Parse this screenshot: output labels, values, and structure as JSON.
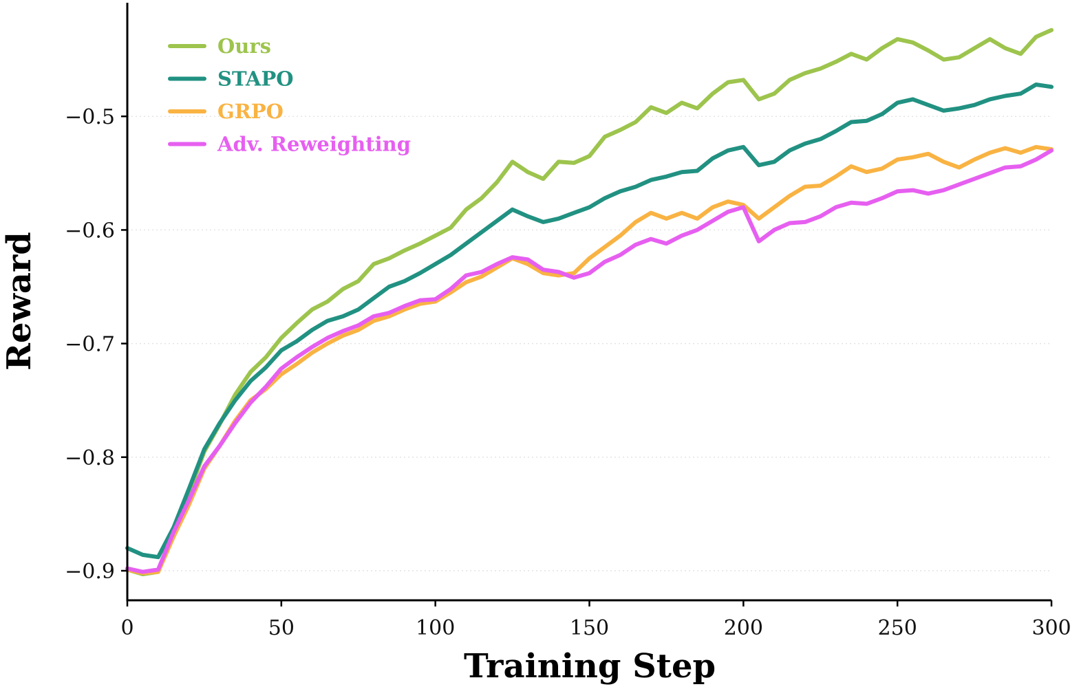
{
  "chart_data": {
    "type": "line",
    "title": "",
    "xlabel": "Training Step",
    "ylabel": "Reward",
    "xlim": [
      0,
      300
    ],
    "ylim": [
      -0.926,
      -0.4
    ],
    "xticks": [
      0,
      50,
      100,
      150,
      200,
      250,
      300
    ],
    "yticks": [
      -0.9,
      -0.8,
      -0.7,
      -0.6,
      -0.5
    ],
    "xtick_labels": [
      "0",
      "50",
      "100",
      "150",
      "200",
      "250",
      "300"
    ],
    "ytick_labels": [
      "−0.9",
      "−0.8",
      "−0.7",
      "−0.6",
      "−0.5"
    ],
    "grid": "horizontal dotted",
    "legend_position": "top-left",
    "series": [
      {
        "name": "Ours",
        "color": "#9dc44d",
        "points": [
          [
            0,
            -0.899
          ],
          [
            5,
            -0.903
          ],
          [
            10,
            -0.901
          ],
          [
            15,
            -0.868
          ],
          [
            20,
            -0.832
          ],
          [
            25,
            -0.795
          ],
          [
            30,
            -0.771
          ],
          [
            35,
            -0.745
          ],
          [
            40,
            -0.725
          ],
          [
            45,
            -0.712
          ],
          [
            50,
            -0.695
          ],
          [
            55,
            -0.682
          ],
          [
            60,
            -0.67
          ],
          [
            65,
            -0.663
          ],
          [
            70,
            -0.652
          ],
          [
            75,
            -0.645
          ],
          [
            80,
            -0.63
          ],
          [
            85,
            -0.625
          ],
          [
            90,
            -0.618
          ],
          [
            95,
            -0.612
          ],
          [
            100,
            -0.605
          ],
          [
            105,
            -0.598
          ],
          [
            110,
            -0.582
          ],
          [
            115,
            -0.572
          ],
          [
            120,
            -0.558
          ],
          [
            125,
            -0.54
          ],
          [
            130,
            -0.549
          ],
          [
            135,
            -0.555
          ],
          [
            140,
            -0.54
          ],
          [
            145,
            -0.541
          ],
          [
            150,
            -0.535
          ],
          [
            155,
            -0.518
          ],
          [
            160,
            -0.512
          ],
          [
            165,
            -0.505
          ],
          [
            170,
            -0.492
          ],
          [
            175,
            -0.497
          ],
          [
            180,
            -0.488
          ],
          [
            185,
            -0.493
          ],
          [
            190,
            -0.48
          ],
          [
            195,
            -0.47
          ],
          [
            200,
            -0.468
          ],
          [
            205,
            -0.485
          ],
          [
            210,
            -0.48
          ],
          [
            215,
            -0.468
          ],
          [
            220,
            -0.462
          ],
          [
            225,
            -0.458
          ],
          [
            230,
            -0.452
          ],
          [
            235,
            -0.445
          ],
          [
            240,
            -0.45
          ],
          [
            245,
            -0.44
          ],
          [
            250,
            -0.432
          ],
          [
            255,
            -0.435
          ],
          [
            260,
            -0.442
          ],
          [
            265,
            -0.45
          ],
          [
            270,
            -0.448
          ],
          [
            275,
            -0.44
          ],
          [
            280,
            -0.432
          ],
          [
            285,
            -0.44
          ],
          [
            290,
            -0.445
          ],
          [
            295,
            -0.43
          ],
          [
            300,
            -0.424
          ]
        ]
      },
      {
        "name": "STAPO",
        "color": "#219182",
        "points": [
          [
            0,
            -0.88
          ],
          [
            5,
            -0.886
          ],
          [
            10,
            -0.888
          ],
          [
            15,
            -0.862
          ],
          [
            20,
            -0.828
          ],
          [
            25,
            -0.793
          ],
          [
            30,
            -0.77
          ],
          [
            35,
            -0.75
          ],
          [
            40,
            -0.733
          ],
          [
            45,
            -0.721
          ],
          [
            50,
            -0.706
          ],
          [
            55,
            -0.698
          ],
          [
            60,
            -0.688
          ],
          [
            65,
            -0.68
          ],
          [
            70,
            -0.676
          ],
          [
            75,
            -0.67
          ],
          [
            80,
            -0.66
          ],
          [
            85,
            -0.65
          ],
          [
            90,
            -0.645
          ],
          [
            95,
            -0.638
          ],
          [
            100,
            -0.63
          ],
          [
            105,
            -0.622
          ],
          [
            110,
            -0.612
          ],
          [
            115,
            -0.602
          ],
          [
            120,
            -0.592
          ],
          [
            125,
            -0.582
          ],
          [
            130,
            -0.588
          ],
          [
            135,
            -0.593
          ],
          [
            140,
            -0.59
          ],
          [
            145,
            -0.585
          ],
          [
            150,
            -0.58
          ],
          [
            155,
            -0.572
          ],
          [
            160,
            -0.566
          ],
          [
            165,
            -0.562
          ],
          [
            170,
            -0.556
          ],
          [
            175,
            -0.553
          ],
          [
            180,
            -0.549
          ],
          [
            185,
            -0.548
          ],
          [
            190,
            -0.537
          ],
          [
            195,
            -0.53
          ],
          [
            200,
            -0.527
          ],
          [
            205,
            -0.543
          ],
          [
            210,
            -0.54
          ],
          [
            215,
            -0.53
          ],
          [
            220,
            -0.524
          ],
          [
            225,
            -0.52
          ],
          [
            230,
            -0.513
          ],
          [
            235,
            -0.505
          ],
          [
            240,
            -0.504
          ],
          [
            245,
            -0.498
          ],
          [
            250,
            -0.488
          ],
          [
            255,
            -0.485
          ],
          [
            260,
            -0.49
          ],
          [
            265,
            -0.495
          ],
          [
            270,
            -0.493
          ],
          [
            275,
            -0.49
          ],
          [
            280,
            -0.485
          ],
          [
            285,
            -0.482
          ],
          [
            290,
            -0.48
          ],
          [
            295,
            -0.472
          ],
          [
            300,
            -0.474
          ]
        ]
      },
      {
        "name": "GRPO",
        "color": "#f9b343",
        "points": [
          [
            0,
            -0.899
          ],
          [
            5,
            -0.902
          ],
          [
            10,
            -0.901
          ],
          [
            15,
            -0.87
          ],
          [
            20,
            -0.842
          ],
          [
            25,
            -0.81
          ],
          [
            30,
            -0.79
          ],
          [
            35,
            -0.768
          ],
          [
            40,
            -0.75
          ],
          [
            45,
            -0.74
          ],
          [
            50,
            -0.727
          ],
          [
            55,
            -0.718
          ],
          [
            60,
            -0.708
          ],
          [
            65,
            -0.7
          ],
          [
            70,
            -0.693
          ],
          [
            75,
            -0.688
          ],
          [
            80,
            -0.68
          ],
          [
            85,
            -0.676
          ],
          [
            90,
            -0.67
          ],
          [
            95,
            -0.665
          ],
          [
            100,
            -0.663
          ],
          [
            105,
            -0.655
          ],
          [
            110,
            -0.646
          ],
          [
            115,
            -0.641
          ],
          [
            120,
            -0.633
          ],
          [
            125,
            -0.625
          ],
          [
            130,
            -0.63
          ],
          [
            135,
            -0.638
          ],
          [
            140,
            -0.64
          ],
          [
            145,
            -0.638
          ],
          [
            150,
            -0.625
          ],
          [
            155,
            -0.615
          ],
          [
            160,
            -0.605
          ],
          [
            165,
            -0.593
          ],
          [
            170,
            -0.585
          ],
          [
            175,
            -0.59
          ],
          [
            180,
            -0.585
          ],
          [
            185,
            -0.59
          ],
          [
            190,
            -0.58
          ],
          [
            195,
            -0.575
          ],
          [
            200,
            -0.578
          ],
          [
            205,
            -0.59
          ],
          [
            210,
            -0.58
          ],
          [
            215,
            -0.57
          ],
          [
            220,
            -0.562
          ],
          [
            225,
            -0.561
          ],
          [
            230,
            -0.553
          ],
          [
            235,
            -0.544
          ],
          [
            240,
            -0.549
          ],
          [
            245,
            -0.546
          ],
          [
            250,
            -0.538
          ],
          [
            255,
            -0.536
          ],
          [
            260,
            -0.533
          ],
          [
            265,
            -0.54
          ],
          [
            270,
            -0.545
          ],
          [
            275,
            -0.538
          ],
          [
            280,
            -0.532
          ],
          [
            285,
            -0.528
          ],
          [
            290,
            -0.532
          ],
          [
            295,
            -0.527
          ],
          [
            300,
            -0.529
          ]
        ]
      },
      {
        "name": "Adv. Reweighting",
        "color": "#e65ff0",
        "points": [
          [
            0,
            -0.898
          ],
          [
            5,
            -0.901
          ],
          [
            10,
            -0.899
          ],
          [
            15,
            -0.866
          ],
          [
            20,
            -0.838
          ],
          [
            25,
            -0.808
          ],
          [
            30,
            -0.79
          ],
          [
            35,
            -0.77
          ],
          [
            40,
            -0.752
          ],
          [
            45,
            -0.738
          ],
          [
            50,
            -0.722
          ],
          [
            55,
            -0.712
          ],
          [
            60,
            -0.703
          ],
          [
            65,
            -0.695
          ],
          [
            70,
            -0.689
          ],
          [
            75,
            -0.684
          ],
          [
            80,
            -0.676
          ],
          [
            85,
            -0.673
          ],
          [
            90,
            -0.667
          ],
          [
            95,
            -0.662
          ],
          [
            100,
            -0.661
          ],
          [
            105,
            -0.652
          ],
          [
            110,
            -0.64
          ],
          [
            115,
            -0.637
          ],
          [
            120,
            -0.63
          ],
          [
            125,
            -0.624
          ],
          [
            130,
            -0.626
          ],
          [
            135,
            -0.635
          ],
          [
            140,
            -0.637
          ],
          [
            145,
            -0.642
          ],
          [
            150,
            -0.638
          ],
          [
            155,
            -0.628
          ],
          [
            160,
            -0.622
          ],
          [
            165,
            -0.613
          ],
          [
            170,
            -0.608
          ],
          [
            175,
            -0.612
          ],
          [
            180,
            -0.605
          ],
          [
            185,
            -0.6
          ],
          [
            190,
            -0.592
          ],
          [
            195,
            -0.584
          ],
          [
            200,
            -0.58
          ],
          [
            205,
            -0.61
          ],
          [
            210,
            -0.6
          ],
          [
            215,
            -0.594
          ],
          [
            220,
            -0.593
          ],
          [
            225,
            -0.588
          ],
          [
            230,
            -0.58
          ],
          [
            235,
            -0.576
          ],
          [
            240,
            -0.577
          ],
          [
            245,
            -0.572
          ],
          [
            250,
            -0.566
          ],
          [
            255,
            -0.565
          ],
          [
            260,
            -0.568
          ],
          [
            265,
            -0.565
          ],
          [
            270,
            -0.56
          ],
          [
            275,
            -0.555
          ],
          [
            280,
            -0.55
          ],
          [
            285,
            -0.545
          ],
          [
            290,
            -0.544
          ],
          [
            295,
            -0.538
          ],
          [
            300,
            -0.53
          ]
        ]
      }
    ]
  }
}
